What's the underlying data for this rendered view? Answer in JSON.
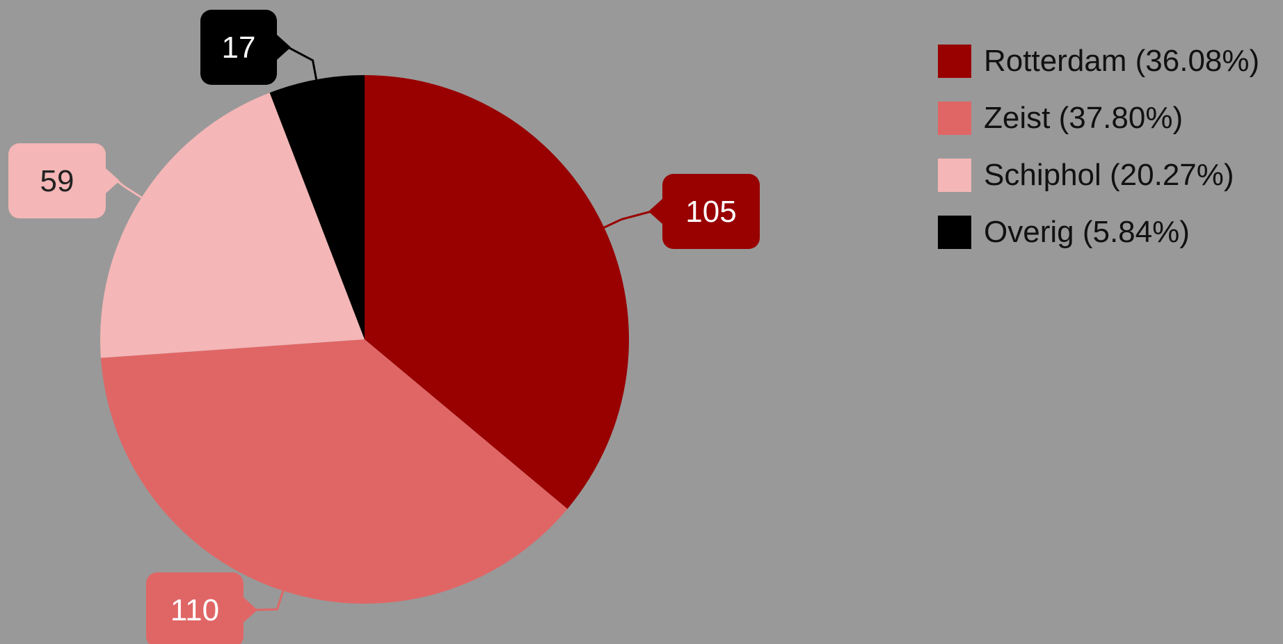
{
  "chart_data": {
    "type": "pie",
    "slices": [
      {
        "label": "Rotterdam",
        "value": 105,
        "percent_label": "Rotterdam (36.08%)",
        "color": "#990000",
        "label_text_color": "#ffffff"
      },
      {
        "label": "Zeist",
        "value": 110,
        "percent_label": "Zeist (37.80%)",
        "color": "#e06666",
        "label_text_color": "#ffffff"
      },
      {
        "label": "Schiphol",
        "value": 59,
        "percent_label": "Schiphol (20.27%)",
        "color": "#f4b6b6",
        "label_text_color": "#222222"
      },
      {
        "label": "Overig",
        "value": 17,
        "percent_label": "Overig (5.84%)",
        "color": "#000000",
        "label_text_color": "#ffffff"
      }
    ],
    "start_angle": "top",
    "direction": "clockwise",
    "legend_position": "right",
    "data_labels": "values in callouts"
  },
  "colors": {
    "background": "#999999"
  }
}
